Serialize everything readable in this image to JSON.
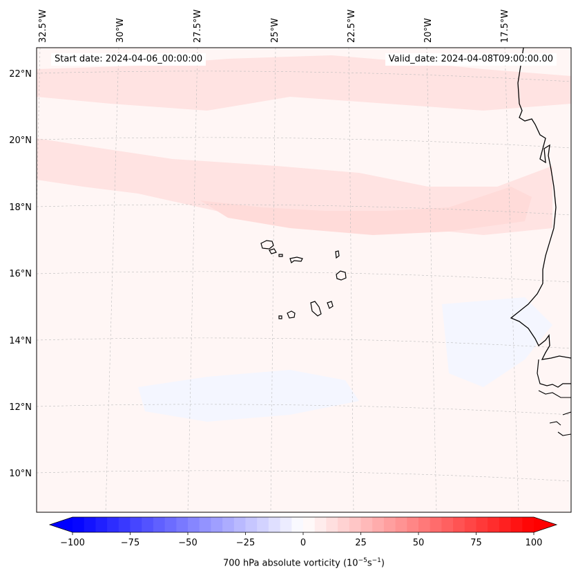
{
  "map": {
    "start_date_text": "Start date: 2024-04-06_00:00:00",
    "valid_date_text": "Valid_date: 2024-04-08T09:00:00.00",
    "longitude_labels": [
      "32.5°W",
      "30°W",
      "27.5°W",
      "25°W",
      "22.5°W",
      "20°W",
      "17.5°W"
    ],
    "latitude_labels": [
      "22°N",
      "20°N",
      "18°N",
      "16°N",
      "14°N",
      "12°N",
      "10°N"
    ],
    "gridlines": true,
    "field_colors": {
      "background": "#fff6f5",
      "positive_band": "#ffe3e2",
      "positive_strong": "#ffdbd9",
      "negative_patch": "#f4f6ff",
      "coastline": "#000000"
    }
  },
  "colorbar": {
    "tick_labels": [
      "−100",
      "−75",
      "−50",
      "−25",
      "0",
      "25",
      "50",
      "75",
      "100"
    ],
    "title_text": "700 hPa absolute vorticity (10",
    "title_exp1": "−5",
    "title_mid": "s",
    "title_exp2": "−1",
    "title_end": ")",
    "range": [
      -100,
      100
    ],
    "extend": "both",
    "colormap": "bwr"
  }
}
